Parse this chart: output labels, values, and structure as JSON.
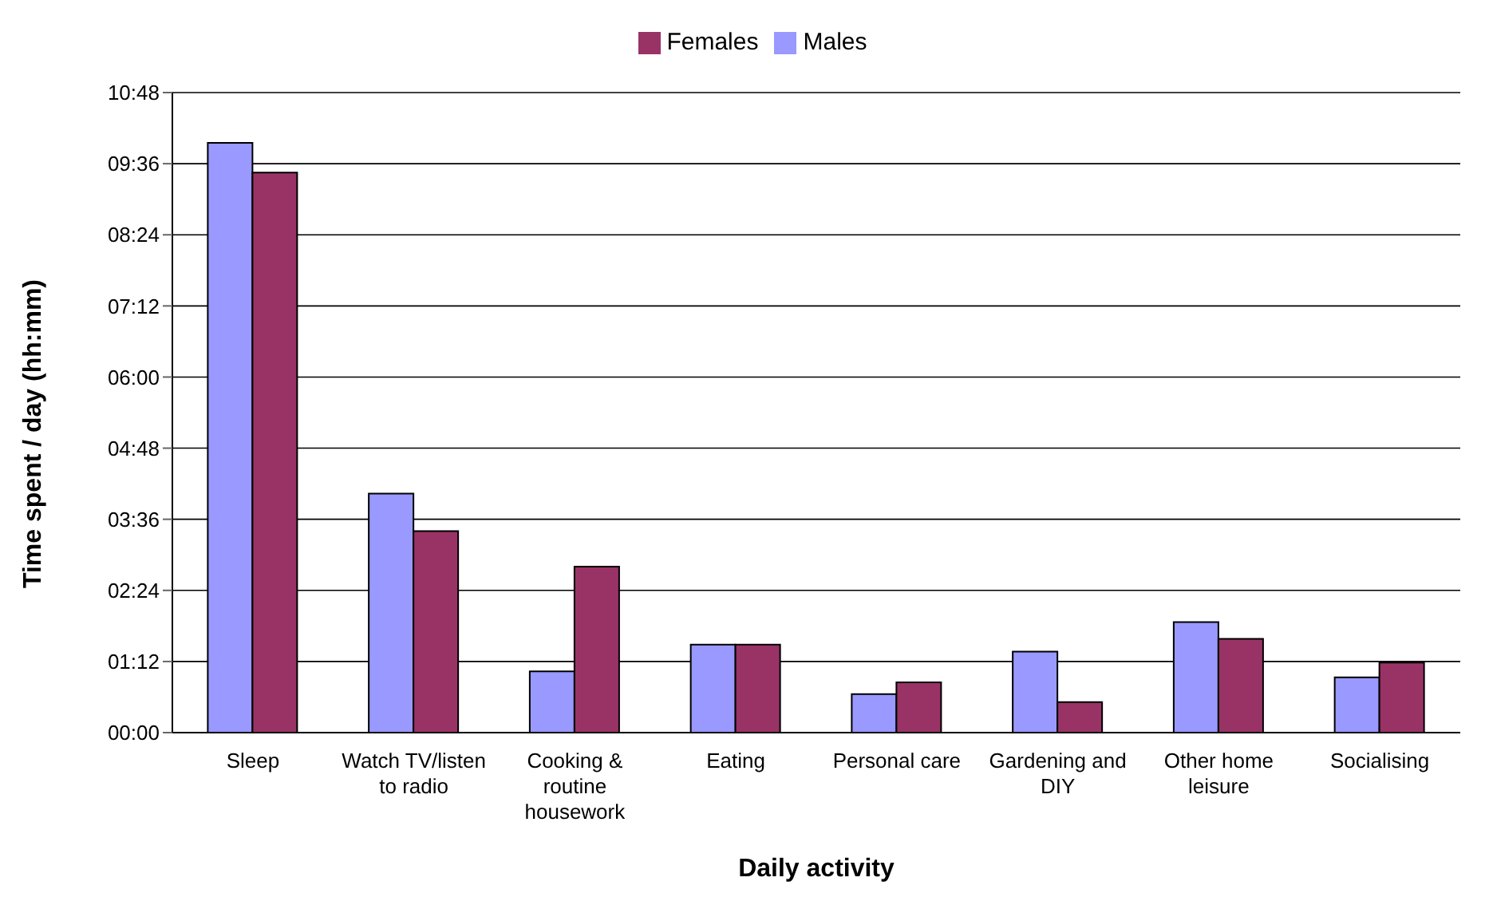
{
  "chart_data": {
    "type": "bar",
    "xlabel": "Daily activity",
    "ylabel": "Time spent / day (hh:mm)",
    "categories": [
      "Sleep",
      "Watch TV/listen to radio",
      "Cooking & routine housework",
      "Eating",
      "Personal care",
      "Gardening and DIY",
      "Other home leisure",
      "Socialising"
    ],
    "series": [
      {
        "name": "Males",
        "color": "#9999ff",
        "values": [
          597,
          242,
          62,
          89,
          39,
          82,
          112,
          56
        ]
      },
      {
        "name": "Females",
        "color": "#993366",
        "values": [
          567,
          204,
          168,
          89,
          51,
          31,
          95,
          71
        ]
      }
    ],
    "ylim": [
      0,
      648
    ],
    "yticks": [
      {
        "value": 0,
        "label": "00:00"
      },
      {
        "value": 72,
        "label": "01:12"
      },
      {
        "value": 144,
        "label": "02:24"
      },
      {
        "value": 216,
        "label": "03:36"
      },
      {
        "value": 288,
        "label": "04:48"
      },
      {
        "value": 360,
        "label": "06:00"
      },
      {
        "value": 432,
        "label": "07:12"
      },
      {
        "value": 504,
        "label": "08:24"
      },
      {
        "value": 576,
        "label": "09:36"
      },
      {
        "value": 648,
        "label": "10:48"
      }
    ],
    "grid": "y",
    "legend": "top"
  }
}
